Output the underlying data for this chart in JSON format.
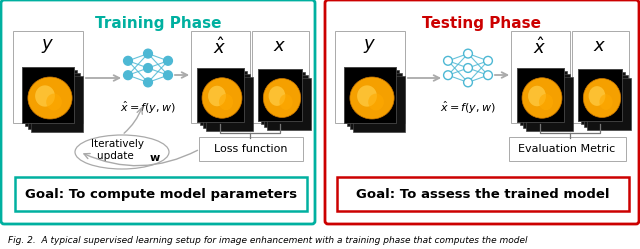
{
  "fig_width": 6.4,
  "fig_height": 2.49,
  "dpi": 100,
  "bg_color": "#ffffff",
  "training_title": "Training Phase",
  "testing_title": "Testing Phase",
  "training_title_color": "#00b0a0",
  "testing_title_color": "#cc0000",
  "training_border_color": "#00b0a0",
  "testing_border_color": "#cc0000",
  "goal_training_text": "Goal: To compute model parameters",
  "goal_testing_text": "Goal: To assess the trained model",
  "goal_training_border": "#00b0a0",
  "goal_testing_border": "#cc0000",
  "iteratively_text": "Iteratively\nupdate ",
  "loss_text": "Loss function",
  "eval_text": "Evaluation Metric",
  "caption": "Fig. 2.  A typical supervised learning setup for image enhancement with a training phase that computes the model",
  "caption_color": "#000000",
  "arrow_color": "#aaaaaa",
  "node_color": "#4db8d4"
}
